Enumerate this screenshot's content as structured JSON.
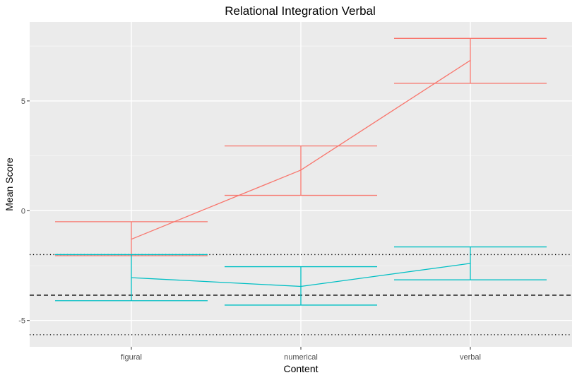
{
  "chart_data": {
    "type": "line",
    "title": "Relational Integration Verbal",
    "xlabel": "Content",
    "ylabel": "Mean Score",
    "categories": [
      "figural",
      "numerical",
      "verbal"
    ],
    "yticks": [
      -5,
      0,
      5
    ],
    "ylim": [
      -6.2,
      8.6
    ],
    "grid": true,
    "legend": "none",
    "series": [
      {
        "color": "#F8766D",
        "values": [
          -1.3,
          1.85,
          6.85
        ],
        "error_low": [
          -2.05,
          0.7,
          5.8
        ],
        "error_high": [
          -0.5,
          2.95,
          7.85
        ]
      },
      {
        "color": "#00BFC4",
        "values": [
          -3.05,
          -3.45,
          -2.4
        ],
        "error_low": [
          -4.1,
          -4.3,
          -3.15
        ],
        "error_high": [
          -2.0,
          -2.55,
          -1.65
        ]
      }
    ],
    "reference_lines": [
      {
        "value": -2.0,
        "style": "dotted"
      },
      {
        "value": -3.85,
        "style": "dashed"
      },
      {
        "value": -5.65,
        "style": "dotted"
      }
    ]
  }
}
